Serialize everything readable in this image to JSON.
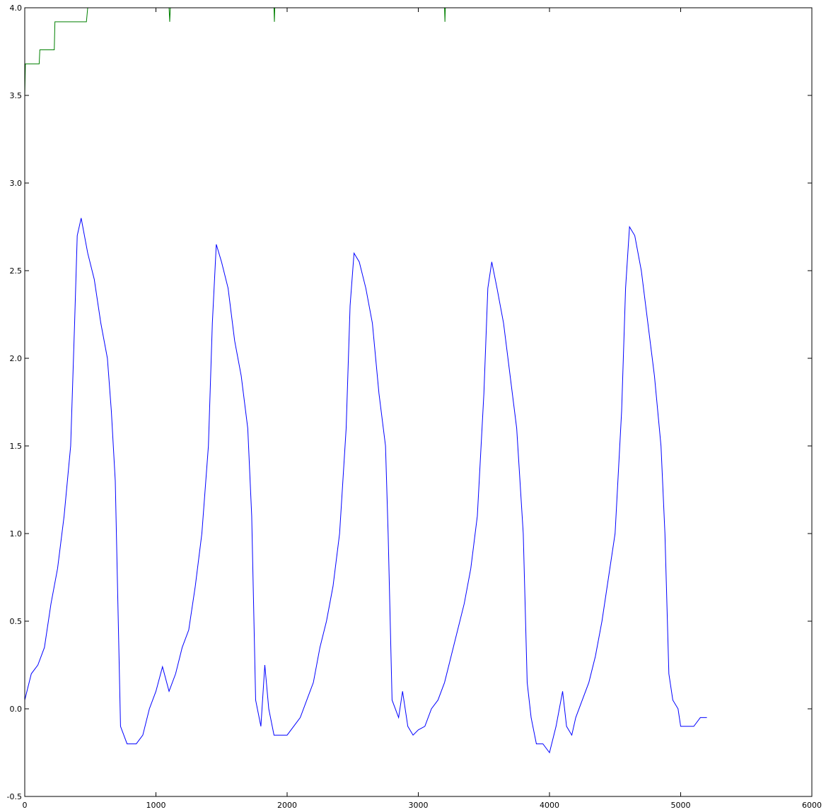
{
  "chart_data": {
    "type": "line",
    "xlim": [
      0,
      6000
    ],
    "xticks": [
      0,
      1000,
      2000,
      3000,
      4000,
      5000,
      6000
    ],
    "ylim": [
      -0.5,
      4.0
    ],
    "yticks": [
      -0.5,
      {
        "value": 0,
        "label": "0.0"
      },
      0.5,
      {
        "value": 1,
        "label": "1.0"
      },
      1.5,
      {
        "value": 2,
        "label": "2.0"
      },
      2.5,
      {
        "value": 3,
        "label": "3.0"
      },
      3.5,
      {
        "value": 4,
        "label": "4.0"
      }
    ],
    "series": [
      {
        "color": "#0000ff",
        "x": [
          0,
          50,
          100,
          150,
          200,
          250,
          300,
          350,
          380,
          400,
          430,
          480,
          530,
          580,
          630,
          660,
          690,
          710,
          730,
          780,
          850,
          900,
          950,
          1000,
          1050,
          1100,
          1150,
          1200,
          1250,
          1300,
          1350,
          1400,
          1430,
          1460,
          1500,
          1550,
          1600,
          1650,
          1700,
          1730,
          1760,
          1800,
          1830,
          1860,
          1900,
          1950,
          2000,
          2050,
          2100,
          2150,
          2200,
          2250,
          2300,
          2350,
          2400,
          2450,
          2480,
          2510,
          2550,
          2600,
          2650,
          2700,
          2750,
          2770,
          2800,
          2850,
          2880,
          2920,
          2960,
          3000,
          3050,
          3100,
          3150,
          3200,
          3250,
          3300,
          3350,
          3400,
          3450,
          3500,
          3530,
          3560,
          3600,
          3650,
          3700,
          3750,
          3800,
          3830,
          3860,
          3900,
          3950,
          4000,
          4050,
          4100,
          4130,
          4170,
          4200,
          4250,
          4300,
          4350,
          4400,
          4450,
          4500,
          4550,
          4580,
          4610,
          4650,
          4700,
          4750,
          4800,
          4850,
          4880,
          4910,
          4940,
          4980,
          5000,
          5050,
          5100,
          5150,
          5200
        ],
        "values": [
          0.05,
          0.2,
          0.25,
          0.35,
          0.6,
          0.8,
          1.1,
          1.5,
          2.2,
          2.7,
          2.8,
          2.6,
          2.45,
          2.2,
          2.0,
          1.7,
          1.3,
          0.6,
          -0.1,
          -0.2,
          -0.2,
          -0.15,
          0.0,
          0.1,
          0.24,
          0.1,
          0.2,
          0.35,
          0.45,
          0.7,
          1.0,
          1.5,
          2.2,
          2.65,
          2.55,
          2.4,
          2.1,
          1.9,
          1.6,
          1.1,
          0.05,
          -0.1,
          0.25,
          0.0,
          -0.15,
          -0.15,
          -0.15,
          -0.1,
          -0.05,
          0.05,
          0.15,
          0.35,
          0.5,
          0.7,
          1.0,
          1.6,
          2.3,
          2.6,
          2.55,
          2.4,
          2.2,
          1.8,
          1.5,
          1.0,
          0.05,
          -0.05,
          0.1,
          -0.1,
          -0.15,
          -0.12,
          -0.1,
          0.0,
          0.05,
          0.15,
          0.3,
          0.45,
          0.6,
          0.8,
          1.1,
          1.8,
          2.4,
          2.55,
          2.4,
          2.2,
          1.9,
          1.6,
          1.0,
          0.15,
          -0.05,
          -0.2,
          -0.2,
          -0.25,
          -0.1,
          0.1,
          -0.1,
          -0.15,
          -0.05,
          0.05,
          0.15,
          0.3,
          0.5,
          0.75,
          1.0,
          1.7,
          2.4,
          2.75,
          2.7,
          2.5,
          2.2,
          1.9,
          1.5,
          1.0,
          0.2,
          0.05,
          0.0,
          -0.1,
          -0.1,
          -0.1,
          -0.05,
          -0.05
        ]
      },
      {
        "color": "#008000",
        "x": [
          0,
          5,
          110,
          115,
          225,
          230,
          470,
          480,
          1100,
          1105,
          1110,
          1900,
          1903,
          1906,
          3200,
          3203,
          3206,
          5220
        ],
        "values": [
          3.5,
          3.68,
          3.68,
          3.76,
          3.76,
          3.92,
          3.92,
          4.0,
          4.0,
          3.92,
          4.0,
          4.0,
          3.92,
          4.0,
          4.0,
          3.92,
          4.0,
          4.0
        ]
      }
    ]
  }
}
